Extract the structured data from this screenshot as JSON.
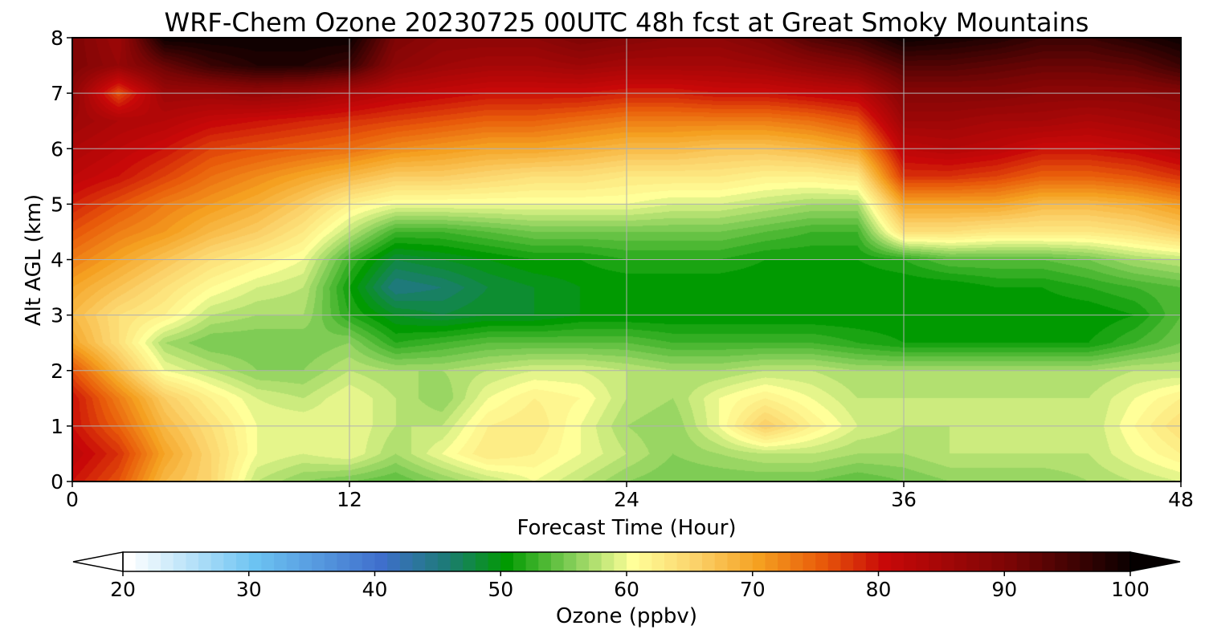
{
  "chart_data": {
    "type": "heatmap",
    "title": "WRF-Chem Ozone  20230725 00UTC 48h fcst at Great Smoky Mountains",
    "xlabel": "Forecast Time (Hour)",
    "ylabel": "Alt AGL (km)",
    "xlim": [
      0,
      48
    ],
    "ylim": [
      0,
      8
    ],
    "xticks": [
      "0",
      "12",
      "24",
      "36",
      "48"
    ],
    "yticks": [
      "0",
      "1",
      "2",
      "3",
      "4",
      "5",
      "6",
      "7",
      "8"
    ],
    "grid": true,
    "x": [
      0,
      2,
      4,
      6,
      8,
      10,
      12,
      14,
      16,
      18,
      20,
      22,
      24,
      26,
      28,
      30,
      32,
      34,
      36,
      38,
      40,
      42,
      44,
      46,
      48
    ],
    "y": [
      0,
      0.5,
      1,
      1.5,
      2,
      2.5,
      3,
      3.5,
      4,
      4.5,
      5,
      5.5,
      6,
      6.5,
      7,
      7.5,
      8
    ],
    "z": [
      [
        80,
        76,
        68,
        65,
        58,
        56,
        55,
        54,
        56,
        58,
        60,
        58,
        56,
        55,
        55,
        55,
        55,
        54,
        55,
        56,
        56,
        56,
        57,
        58,
        59
      ],
      [
        82,
        78,
        70,
        65,
        60,
        59,
        60,
        57,
        60,
        63,
        62,
        60,
        58,
        56,
        57,
        58,
        58,
        57,
        57,
        58,
        58,
        58,
        58,
        60,
        62
      ],
      [
        80,
        75,
        68,
        64,
        60,
        60,
        60,
        58,
        58,
        62,
        63,
        60,
        57,
        56,
        60,
        66,
        62,
        59,
        58,
        58,
        58,
        58,
        58,
        61,
        64
      ],
      [
        80,
        73,
        66,
        62,
        59,
        58,
        60,
        58,
        56,
        60,
        62,
        61,
        58,
        57,
        60,
        62,
        60,
        58,
        58,
        58,
        58,
        58,
        58,
        60,
        62
      ],
      [
        76,
        68,
        60,
        58,
        56,
        56,
        58,
        57,
        57,
        58,
        59,
        59,
        58,
        57,
        57,
        58,
        58,
        57,
        57,
        57,
        57,
        57,
        57,
        58,
        58
      ],
      [
        70,
        64,
        57,
        55,
        55,
        55,
        56,
        52,
        53,
        54,
        54,
        54,
        54,
        53,
        53,
        53,
        53,
        52,
        51,
        51,
        51,
        51,
        51,
        53,
        55
      ],
      [
        68,
        64,
        62,
        58,
        57,
        57,
        52,
        49,
        48,
        49,
        49,
        50,
        50,
        50,
        50,
        50,
        50,
        50,
        50,
        50,
        50,
        50,
        50,
        51,
        54
      ],
      [
        70,
        67,
        64,
        61,
        59,
        58,
        51,
        45,
        46,
        48,
        49,
        50,
        50,
        50,
        50,
        50,
        50,
        50,
        50,
        50,
        51,
        51,
        52,
        53,
        54
      ],
      [
        73,
        70,
        67,
        64,
        62,
        60,
        53,
        48,
        49,
        50,
        51,
        51,
        52,
        52,
        52,
        51,
        51,
        51,
        52,
        54,
        54,
        54,
        55,
        57,
        58
      ],
      [
        76,
        73,
        71,
        68,
        66,
        63,
        58,
        53,
        53,
        54,
        55,
        55,
        55,
        55,
        55,
        54,
        53,
        53,
        64,
        64,
        63,
        63,
        63,
        64,
        66
      ],
      [
        79,
        76,
        73,
        71,
        69,
        66,
        62,
        60,
        60,
        60,
        60,
        60,
        60,
        59,
        59,
        58,
        57,
        57,
        70,
        70,
        70,
        68,
        68,
        69,
        71
      ],
      [
        82,
        80,
        77,
        74,
        72,
        70,
        68,
        66,
        66,
        65,
        64,
        64,
        63,
        63,
        63,
        62,
        62,
        63,
        78,
        78,
        77,
        75,
        75,
        76,
        78
      ],
      [
        84,
        82,
        80,
        77,
        76,
        75,
        74,
        72,
        71,
        70,
        70,
        69,
        68,
        68,
        67,
        67,
        68,
        70,
        82,
        83,
        82,
        80,
        80,
        81,
        83
      ],
      [
        86,
        84,
        83,
        81,
        80,
        79,
        78,
        77,
        76,
        75,
        75,
        74,
        73,
        73,
        73,
        73,
        74,
        76,
        86,
        86,
        85,
        85,
        84,
        85,
        86
      ],
      [
        88,
        76,
        86,
        86,
        87,
        86,
        84,
        82,
        81,
        80,
        80,
        80,
        79,
        79,
        80,
        80,
        81,
        82,
        89,
        89,
        89,
        88,
        88,
        88,
        89
      ],
      [
        90,
        87,
        92,
        96,
        98,
        98,
        96,
        88,
        86,
        85,
        85,
        86,
        85,
        85,
        85,
        86,
        88,
        90,
        94,
        94,
        93,
        92,
        92,
        93,
        96
      ],
      [
        90,
        86,
        100,
        100,
        100,
        100,
        100,
        90,
        88,
        88,
        88,
        90,
        89,
        88,
        88,
        90,
        94,
        96,
        100,
        99,
        98,
        96,
        96,
        98,
        100
      ]
    ],
    "colorbar": {
      "label": "Ozone  (ppbv)",
      "min": 20,
      "max": 100,
      "ticks": [
        "20",
        "30",
        "40",
        "50",
        "60",
        "70",
        "80",
        "90",
        "100"
      ],
      "extend": "both",
      "stops": [
        {
          "value": 20,
          "color": "#ffffff"
        },
        {
          "value": 30,
          "color": "#6cc3f2"
        },
        {
          "value": 40,
          "color": "#3f6fcc"
        },
        {
          "value": 45,
          "color": "#1e7a7a"
        },
        {
          "value": 50,
          "color": "#019a01"
        },
        {
          "value": 55,
          "color": "#7fcc55"
        },
        {
          "value": 60,
          "color": "#ffff99"
        },
        {
          "value": 65,
          "color": "#fbd26a"
        },
        {
          "value": 70,
          "color": "#f5a020"
        },
        {
          "value": 75,
          "color": "#e85a0a"
        },
        {
          "value": 80,
          "color": "#c80808"
        },
        {
          "value": 90,
          "color": "#7a0505"
        },
        {
          "value": 100,
          "color": "#050000"
        }
      ]
    }
  }
}
